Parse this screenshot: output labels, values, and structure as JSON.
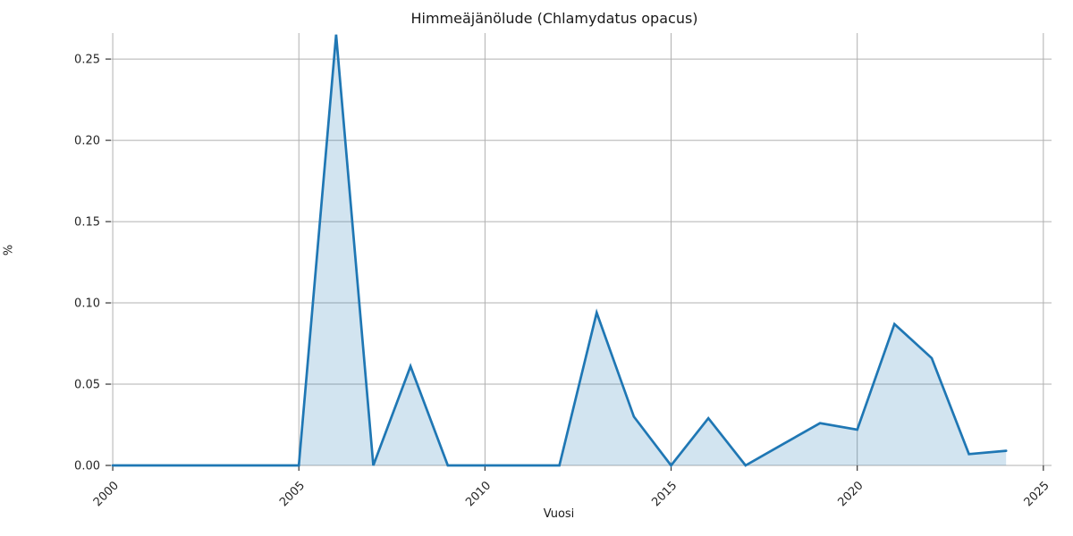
{
  "chart_data": {
    "type": "area",
    "title": "Himmeäjänölude (Chlamydatus opacus)",
    "xlabel": "Vuosi",
    "ylabel": "%",
    "x": [
      2000,
      2001,
      2002,
      2003,
      2004,
      2005,
      2006,
      2007,
      2008,
      2009,
      2010,
      2011,
      2012,
      2013,
      2014,
      2015,
      2016,
      2017,
      2018,
      2019,
      2020,
      2021,
      2022,
      2023,
      2024
    ],
    "values": [
      0,
      0,
      0,
      0,
      0,
      0,
      0.265,
      0,
      0.061,
      0,
      0,
      0,
      0,
      0.094,
      0.03,
      0,
      0.029,
      0,
      0.013,
      0.026,
      0.022,
      0.087,
      0.066,
      0.007,
      0.009
    ],
    "series_name": "Himmeäjänölude (Chlamydatus opacus)",
    "x_ticks": [
      2000,
      2005,
      2010,
      2015,
      2020,
      2025
    ],
    "y_ticks": [
      0.0,
      0.05,
      0.1,
      0.15,
      0.2,
      0.25
    ],
    "y_tick_decimals": 2,
    "xlim": [
      1999.95,
      2025.22
    ],
    "ylim": [
      0,
      0.266
    ],
    "grid": true,
    "legend": "none",
    "x_tick_rotation_deg": 45,
    "colors": {
      "line": "#1f77b4",
      "fill": "rgba(31,119,180,0.2)",
      "grid": "#b0b0b0",
      "tick": "#333333",
      "text": "#262626",
      "background": "#ffffff"
    }
  }
}
